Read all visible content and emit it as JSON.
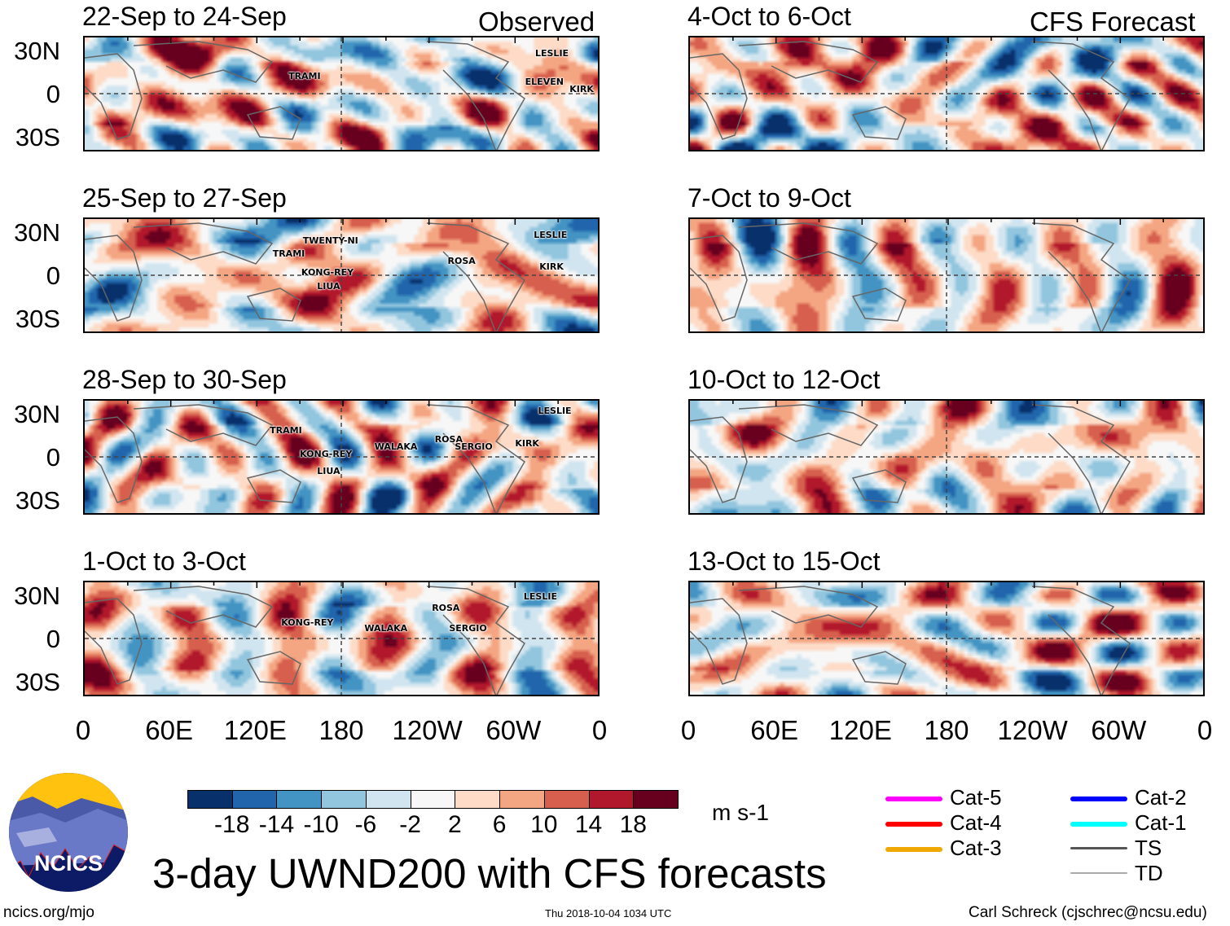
{
  "headers": {
    "observed": "Observed",
    "forecast": "CFS Forecast"
  },
  "y_labels": [
    "30N",
    "0",
    "30S"
  ],
  "x_labels": [
    "0",
    "60E",
    "120E",
    "180",
    "120W",
    "60W",
    "0"
  ],
  "panels": [
    {
      "title": "22-Sep to 24-Sep",
      "kind": "observed",
      "seed": 1,
      "storms": [
        {
          "name": "TRAMI",
          "lon": 142,
          "lat": 13
        },
        {
          "name": "LESLIE",
          "lon": 314,
          "lat": 29
        },
        {
          "name": "ELEVEN",
          "lon": 307,
          "lat": 9
        },
        {
          "name": "KIRK",
          "lon": 338,
          "lat": 4
        }
      ]
    },
    {
      "title": "25-Sep to 27-Sep",
      "kind": "observed",
      "seed": 2,
      "storms": [
        {
          "name": "TWENTY-NI",
          "lon": 152,
          "lat": 25
        },
        {
          "name": "TRAMI",
          "lon": 131,
          "lat": 16
        },
        {
          "name": "KONG-REY",
          "lon": 151,
          "lat": 3
        },
        {
          "name": "LIUA",
          "lon": 162,
          "lat": -7
        },
        {
          "name": "ROSA",
          "lon": 253,
          "lat": 11
        },
        {
          "name": "LESLIE",
          "lon": 313,
          "lat": 29
        },
        {
          "name": "KIRK",
          "lon": 317,
          "lat": 7
        }
      ]
    },
    {
      "title": "28-Sep to 30-Sep",
      "kind": "observed",
      "seed": 3,
      "storms": [
        {
          "name": "LESLIE",
          "lon": 316,
          "lat": 33
        },
        {
          "name": "TRAMI",
          "lon": 129,
          "lat": 19
        },
        {
          "name": "KONG-REY",
          "lon": 150,
          "lat": 3
        },
        {
          "name": "WALAKA",
          "lon": 202,
          "lat": 8
        },
        {
          "name": "ROSA",
          "lon": 244,
          "lat": 13
        },
        {
          "name": "SERGIO",
          "lon": 258,
          "lat": 8
        },
        {
          "name": "KIRK",
          "lon": 300,
          "lat": 10
        },
        {
          "name": "LIUA",
          "lon": 162,
          "lat": -9
        }
      ]
    },
    {
      "title": "1-Oct to 3-Oct",
      "kind": "observed",
      "seed": 4,
      "storms": [
        {
          "name": "LESLIE",
          "lon": 306,
          "lat": 30
        },
        {
          "name": "KONG-REY",
          "lon": 137,
          "lat": 12
        },
        {
          "name": "WALAKA",
          "lon": 195,
          "lat": 8
        },
        {
          "name": "ROSA",
          "lon": 242,
          "lat": 22
        },
        {
          "name": "SERGIO",
          "lon": 254,
          "lat": 8
        }
      ]
    },
    {
      "title": "4-Oct to 6-Oct",
      "kind": "forecast",
      "seed": 5,
      "storms": []
    },
    {
      "title": "7-Oct to 9-Oct",
      "kind": "forecast",
      "seed": 6,
      "storms": []
    },
    {
      "title": "10-Oct to 12-Oct",
      "kind": "forecast",
      "seed": 7,
      "storms": []
    },
    {
      "title": "13-Oct to 15-Oct",
      "kind": "forecast",
      "seed": 8,
      "storms": []
    }
  ],
  "colorbar": {
    "colors": [
      "#08306b",
      "#2166ac",
      "#4393c3",
      "#92c5de",
      "#d1e5f0",
      "#f7f7f7",
      "#fddbc7",
      "#f4a582",
      "#d6604d",
      "#b2182b",
      "#67001f"
    ],
    "labels": [
      "-18",
      "-14",
      "-10",
      "-6",
      "-2",
      "2",
      "6",
      "10",
      "14",
      "18"
    ],
    "units": "m s-1"
  },
  "storm_legend": [
    {
      "label": "Cat-5",
      "color": "#ff00ff"
    },
    {
      "label": "Cat-4",
      "color": "#ff0000"
    },
    {
      "label": "Cat-3",
      "color": "#f0a800"
    },
    {
      "label": "Cat-2",
      "color": "#0000ff"
    },
    {
      "label": "Cat-1",
      "color": "#00ffff"
    },
    {
      "label": "TS",
      "color": "#555555"
    },
    {
      "label": "TD",
      "color": "#aaaaaa"
    }
  ],
  "title": "3-day UWND200 with CFS forecasts",
  "logo_text": "NCICS",
  "footer": {
    "url": "ncics.org/mjo",
    "timestamp": "Thu 2018-10-04 1034 UTC",
    "author": "Carl Schreck (cjschrec@ncsu.edu)"
  },
  "chart_data": {
    "type": "heatmap",
    "variable": "200-hPa zonal wind anomaly (3-day mean)",
    "units": "m s-1",
    "xlim": [
      0,
      360
    ],
    "ylim": [
      -40,
      40
    ],
    "contour_levels": [
      -18,
      -14,
      -10,
      -6,
      -2,
      2,
      6,
      10,
      14,
      18
    ]
  }
}
